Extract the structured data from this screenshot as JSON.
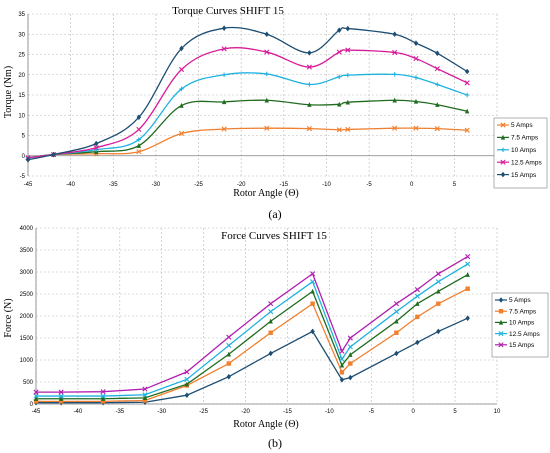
{
  "chart_data": [
    {
      "type": "line",
      "title": "Torque Curves SHIFT 15",
      "xlabel": "Rotor Angle (Θ)",
      "ylabel": "Torque (Nm)",
      "panel_label": "(a)",
      "xlim": [
        -45,
        10
      ],
      "ylim": [
        -5,
        35
      ],
      "xticks": [
        -45,
        -40,
        -35,
        -30,
        -25,
        -20,
        -15,
        -10,
        -5,
        0,
        5,
        10
      ],
      "yticks": [
        -5,
        0,
        5,
        10,
        15,
        20,
        25,
        30,
        35
      ],
      "grid": true,
      "legend_position": "right",
      "series": [
        {
          "name": "5 Amps",
          "color": "#f07f2e",
          "marker": "x",
          "x": [
            -45,
            -42,
            -37,
            -32,
            -27,
            -22,
            -17,
            -12,
            -8.5,
            -7.5,
            -2,
            0.5,
            3,
            6.5
          ],
          "y": [
            -0.5,
            0.3,
            0.5,
            1,
            5.5,
            6.6,
            6.8,
            6.7,
            6.4,
            6.5,
            6.8,
            6.8,
            6.7,
            6.3
          ]
        },
        {
          "name": "7.5 Amps",
          "color": "#1f6b1f",
          "marker": "triangle",
          "x": [
            -45,
            -42,
            -37,
            -32,
            -27,
            -22,
            -17,
            -12,
            -8.5,
            -7.5,
            -2,
            0.5,
            3,
            6.5
          ],
          "y": [
            -0.5,
            0.3,
            1,
            2.5,
            12.4,
            13.3,
            13.7,
            12.6,
            12.7,
            13.2,
            13.7,
            13.4,
            12.6,
            11
          ]
        },
        {
          "name": "10 Amps",
          "color": "#1fb2e0",
          "marker": "plus",
          "x": [
            -45,
            -42,
            -37,
            -32,
            -27,
            -22,
            -17,
            -12,
            -8.5,
            -7.5,
            -2,
            0.5,
            3,
            6.5
          ],
          "y": [
            -0.5,
            0.3,
            1.5,
            4,
            16.5,
            20,
            20.2,
            17.6,
            19.5,
            19.9,
            20.1,
            19.3,
            17.6,
            15
          ]
        },
        {
          "name": "12.5 Amps",
          "color": "#d81b9a",
          "marker": "x",
          "x": [
            -45,
            -42,
            -37,
            -32,
            -27,
            -22,
            -17,
            -12,
            -8.5,
            -7.5,
            -2,
            0.5,
            3,
            6.5
          ],
          "y": [
            -0.5,
            0.3,
            2,
            6.5,
            21.3,
            26.4,
            25.6,
            21.9,
            25.6,
            26.1,
            25.5,
            24,
            21.5,
            18
          ]
        },
        {
          "name": "15 Amps",
          "color": "#1d4e73",
          "marker": "diamond",
          "x": [
            -45,
            -42,
            -37,
            -32,
            -27,
            -22,
            -17,
            -12,
            -8.5,
            -7.5,
            -2,
            0.5,
            3,
            6.5
          ],
          "y": [
            -1,
            0.3,
            3,
            9.5,
            26.5,
            31.5,
            30,
            25.4,
            31,
            31.4,
            30,
            27.8,
            25.3,
            20.8
          ]
        }
      ]
    },
    {
      "type": "line",
      "title": "Force Curves SHIFT 15",
      "xlabel": "Rotor Angle (Θ)",
      "ylabel": "Force (N)",
      "panel_label": "(b)",
      "xlim": [
        -45,
        10
      ],
      "ylim": [
        0,
        4000
      ],
      "xticks": [
        -45,
        -40,
        -35,
        -30,
        -25,
        -20,
        -15,
        -10,
        -5,
        0,
        5,
        10
      ],
      "yticks": [
        0,
        500,
        1000,
        1500,
        2000,
        2500,
        3000,
        3500,
        4000
      ],
      "grid": true,
      "legend_position": "right",
      "series": [
        {
          "name": "5 Amps",
          "color": "#1d4e73",
          "marker": "diamond",
          "x": [
            -45,
            -42,
            -37,
            -32,
            -27,
            -22,
            -17,
            -12,
            -8.5,
            -7.5,
            -2,
            0.5,
            3,
            6.5
          ],
          "y": [
            30,
            30,
            30,
            40,
            200,
            620,
            1150,
            1650,
            550,
            600,
            1150,
            1400,
            1650,
            1950
          ]
        },
        {
          "name": "7.5 Amps",
          "color": "#f07f2e",
          "marker": "square",
          "x": [
            -45,
            -42,
            -37,
            -32,
            -27,
            -22,
            -17,
            -12,
            -8.5,
            -7.5,
            -2,
            0.5,
            3,
            6.5
          ],
          "y": [
            60,
            60,
            60,
            80,
            420,
            920,
            1620,
            2280,
            720,
            920,
            1620,
            1980,
            2280,
            2620
          ]
        },
        {
          "name": "10 Amps",
          "color": "#1f6b1f",
          "marker": "triangle",
          "x": [
            -45,
            -42,
            -37,
            -32,
            -27,
            -22,
            -17,
            -12,
            -8.5,
            -7.5,
            -2,
            0.5,
            3,
            6.5
          ],
          "y": [
            120,
            120,
            120,
            140,
            450,
            1130,
            1880,
            2560,
            880,
            1120,
            1880,
            2280,
            2560,
            2940
          ]
        },
        {
          "name": "12.5 Amps",
          "color": "#1fb2e0",
          "marker": "x",
          "x": [
            -45,
            -42,
            -37,
            -32,
            -27,
            -22,
            -17,
            -12,
            -8.5,
            -7.5,
            -2,
            0.5,
            3,
            6.5
          ],
          "y": [
            180,
            180,
            180,
            210,
            560,
            1330,
            2100,
            2780,
            1020,
            1300,
            2100,
            2450,
            2780,
            3180
          ]
        },
        {
          "name": "15 Amps",
          "color": "#b01fb0",
          "marker": "x",
          "x": [
            -45,
            -42,
            -37,
            -32,
            -27,
            -22,
            -17,
            -12,
            -8.5,
            -7.5,
            -2,
            0.5,
            3,
            6.5
          ],
          "y": [
            270,
            270,
            280,
            340,
            730,
            1520,
            2280,
            2960,
            1200,
            1500,
            2280,
            2600,
            2960,
            3350
          ]
        }
      ]
    }
  ]
}
